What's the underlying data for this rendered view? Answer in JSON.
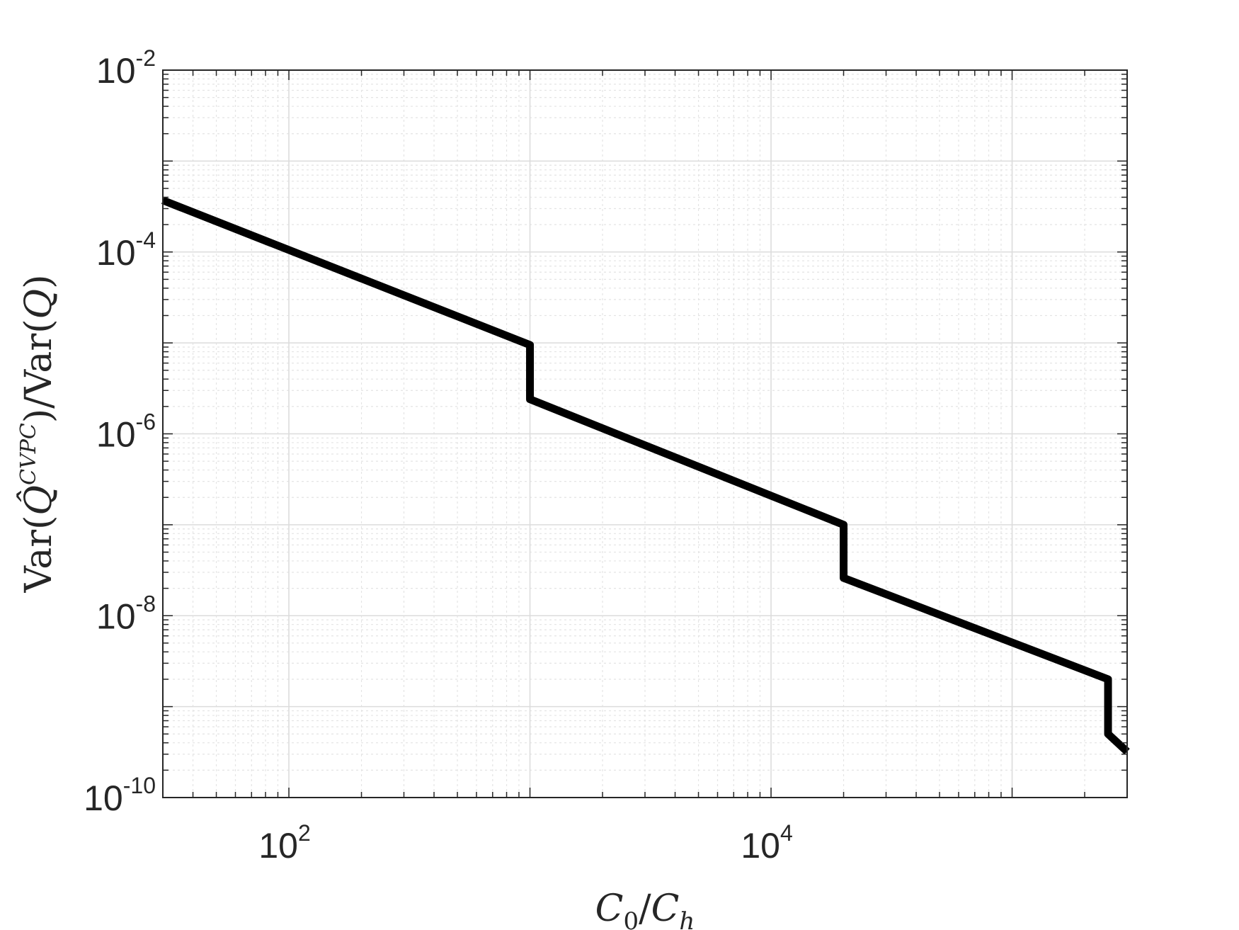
{
  "chart_data": {
    "type": "line",
    "xscale": "log",
    "yscale": "log",
    "xlim": [
      30,
      300000
    ],
    "ylim": [
      1e-10,
      0.01
    ],
    "grid": true,
    "minor_grid": true,
    "xlabel": "C0/Ch",
    "ylabel": "Var(Q̂^CVPC)/Var(Q)",
    "x_ticks": [
      {
        "value": 100,
        "base": "10",
        "exp": "2"
      },
      {
        "value": 10000,
        "base": "10",
        "exp": "4"
      }
    ],
    "y_ticks": [
      {
        "value": 0.01,
        "base": "10",
        "exp": "-2"
      },
      {
        "value": 0.0001,
        "base": "10",
        "exp": "-4"
      },
      {
        "value": 1e-06,
        "base": "10",
        "exp": "-6"
      },
      {
        "value": 1e-08,
        "base": "10",
        "exp": "-8"
      },
      {
        "value": 1e-10,
        "base": "10",
        "exp": "-10"
      }
    ],
    "series": [
      {
        "color": "#000000",
        "x": [
          30,
          1000,
          1000,
          1000,
          20000,
          20000,
          20000,
          250000,
          250000,
          250000,
          300000
        ],
        "y": [
          0.00037,
          9.5e-06,
          6.5e-06,
          2.4e-06,
          1e-07,
          7e-08,
          2.6e-08,
          2e-09,
          1.3e-09,
          5e-10,
          3.2e-10
        ]
      }
    ]
  }
}
